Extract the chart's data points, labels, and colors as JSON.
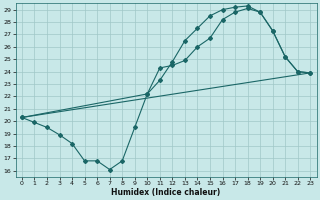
{
  "xlabel": "Humidex (Indice chaleur)",
  "bg_color": "#c8e8e8",
  "grid_color": "#a0c8c8",
  "line_color": "#1a6666",
  "xlim": [
    -0.5,
    23.5
  ],
  "ylim": [
    15.5,
    29.5
  ],
  "xticks": [
    0,
    1,
    2,
    3,
    4,
    5,
    6,
    7,
    8,
    9,
    10,
    11,
    12,
    13,
    14,
    15,
    16,
    17,
    18,
    19,
    20,
    21,
    22,
    23
  ],
  "yticks": [
    16,
    17,
    18,
    19,
    20,
    21,
    22,
    23,
    24,
    25,
    26,
    27,
    28,
    29
  ],
  "line1_x": [
    0,
    1,
    2,
    3,
    4,
    5,
    6,
    7,
    8,
    9,
    10,
    11,
    12,
    13,
    14,
    15,
    16,
    17,
    18,
    19,
    20,
    21,
    22,
    23
  ],
  "line1_y": [
    20.3,
    19.9,
    19.5,
    18.9,
    18.2,
    16.8,
    16.8,
    16.1,
    16.8,
    19.5,
    22.2,
    24.3,
    24.5,
    24.9,
    26.0,
    26.7,
    28.2,
    28.8,
    29.1,
    28.8,
    27.3,
    25.2,
    24.0,
    23.9
  ],
  "line2_x": [
    0,
    10,
    11,
    12,
    13,
    14,
    15,
    16,
    17,
    18,
    19,
    20,
    21,
    22,
    23
  ],
  "line2_y": [
    20.3,
    22.2,
    23.3,
    24.8,
    26.5,
    27.5,
    28.5,
    29.0,
    29.2,
    29.3,
    28.8,
    27.3,
    25.2,
    24.0,
    23.9
  ],
  "line3_x": [
    0,
    23
  ],
  "line3_y": [
    20.3,
    23.9
  ]
}
